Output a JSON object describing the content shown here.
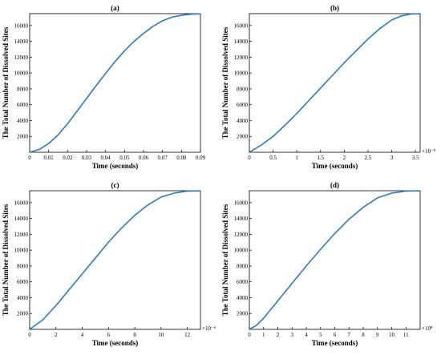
{
  "chart_data": [
    {
      "type": "line",
      "title": "(a)",
      "xlabel": "Time (seconds)",
      "ylabel": "The Total Number of Dissolved Sites",
      "x_multiplier": "",
      "xlim": [
        0,
        0.09
      ],
      "ylim": [
        0,
        17500
      ],
      "xticks": [
        "0",
        "0.01",
        "0.02",
        "0.03",
        "0.04",
        "0.05",
        "0.06",
        "0.07",
        "0.08",
        "0.09"
      ],
      "xtick_values": [
        0,
        0.01,
        0.02,
        0.03,
        0.04,
        0.05,
        0.06,
        0.07,
        0.08,
        0.09
      ],
      "yticks": [
        "2000",
        "4000",
        "6000",
        "8000",
        "10000",
        "12000",
        "14000",
        "16000"
      ],
      "ytick_values": [
        2000,
        4000,
        6000,
        8000,
        10000,
        12000,
        14000,
        16000
      ],
      "grid": false,
      "line_color": "#2a7bbf",
      "series": [
        {
          "x": [
            0,
            0.005,
            0.01,
            0.015,
            0.02,
            0.025,
            0.03,
            0.035,
            0.04,
            0.045,
            0.05,
            0.055,
            0.06,
            0.065,
            0.07,
            0.075,
            0.08,
            0.085,
            0.09
          ],
          "values": [
            0,
            350,
            1100,
            2200,
            3600,
            5200,
            6800,
            8400,
            9950,
            11450,
            12800,
            14000,
            15000,
            15900,
            16600,
            17050,
            17300,
            17430,
            17470
          ]
        }
      ]
    },
    {
      "type": "line",
      "title": "(b)",
      "xlabel": "Time (seconds)",
      "ylabel": "The Total Number of Dissolved Sites",
      "x_multiplier": "×10⁻⁸",
      "xlim": [
        0,
        3.6
      ],
      "ylim": [
        0,
        17500
      ],
      "xticks": [
        "0",
        "0.5",
        "1",
        "1.5",
        "2",
        "2.5",
        "3",
        "3.5"
      ],
      "xtick_values": [
        0,
        0.5,
        1,
        1.5,
        2,
        2.5,
        3,
        3.5
      ],
      "yticks": [
        "2000",
        "4000",
        "6000",
        "8000",
        "10000",
        "12000",
        "14000",
        "16000"
      ],
      "ytick_values": [
        2000,
        4000,
        6000,
        8000,
        10000,
        12000,
        14000,
        16000
      ],
      "grid": false,
      "line_color": "#2a7bbf",
      "series": [
        {
          "x": [
            0,
            0.25,
            0.5,
            0.75,
            1.0,
            1.25,
            1.5,
            1.75,
            2.0,
            2.25,
            2.5,
            2.75,
            3.0,
            3.2,
            3.4,
            3.6
          ],
          "values": [
            0,
            900,
            2000,
            3400,
            4900,
            6500,
            8100,
            9700,
            11300,
            12800,
            14300,
            15600,
            16700,
            17200,
            17450,
            17480
          ]
        }
      ]
    },
    {
      "type": "line",
      "title": "(c)",
      "xlabel": "Time (seconds)",
      "ylabel": "The Total Number of Dissolved Sites",
      "x_multiplier": "×10⁻⁶",
      "xlim": [
        0,
        13
      ],
      "ylim": [
        0,
        17500
      ],
      "xticks": [
        "0",
        "2",
        "4",
        "6",
        "8",
        "10",
        "12"
      ],
      "xtick_values": [
        0,
        2,
        4,
        6,
        8,
        10,
        12
      ],
      "yticks": [
        "2000",
        "4000",
        "6000",
        "8000",
        "10000",
        "12000",
        "14000",
        "16000"
      ],
      "ytick_values": [
        2000,
        4000,
        6000,
        8000,
        10000,
        12000,
        14000,
        16000
      ],
      "grid": false,
      "line_color": "#2a7bbf",
      "series": [
        {
          "x": [
            0,
            1,
            2,
            3,
            4,
            5,
            6,
            7,
            8,
            9,
            10,
            11,
            12,
            13
          ],
          "values": [
            0,
            1200,
            3000,
            5000,
            7000,
            9000,
            11000,
            12800,
            14400,
            15700,
            16700,
            17200,
            17450,
            17480
          ]
        }
      ]
    },
    {
      "type": "line",
      "title": "(d)",
      "xlabel": "Time (seconds)",
      "ylabel": "The Total Number of Dissolved Sites",
      "x_multiplier": "×10⁸",
      "xlim": [
        0,
        12
      ],
      "ylim": [
        0,
        17500
      ],
      "xticks": [
        "0",
        "1",
        "2",
        "3",
        "4",
        "5",
        "6",
        "7",
        "8",
        "9",
        "10",
        "11"
      ],
      "xtick_values": [
        0,
        1,
        2,
        3,
        4,
        5,
        6,
        7,
        8,
        9,
        10,
        11
      ],
      "yticks": [
        "2000",
        "4000",
        "6000",
        "8000",
        "10000",
        "12000",
        "14000",
        "16000"
      ],
      "ytick_values": [
        2000,
        4000,
        6000,
        8000,
        10000,
        12000,
        14000,
        16000
      ],
      "grid": false,
      "line_color": "#2a7bbf",
      "series": [
        {
          "x": [
            0,
            0.5,
            1,
            1.5,
            2,
            3,
            4,
            5,
            6,
            7,
            8,
            9,
            10,
            11,
            11.6,
            12
          ],
          "values": [
            0,
            500,
            1400,
            2500,
            3600,
            5800,
            8000,
            10100,
            12100,
            13900,
            15400,
            16600,
            17200,
            17450,
            17480,
            17480
          ]
        }
      ]
    }
  ]
}
